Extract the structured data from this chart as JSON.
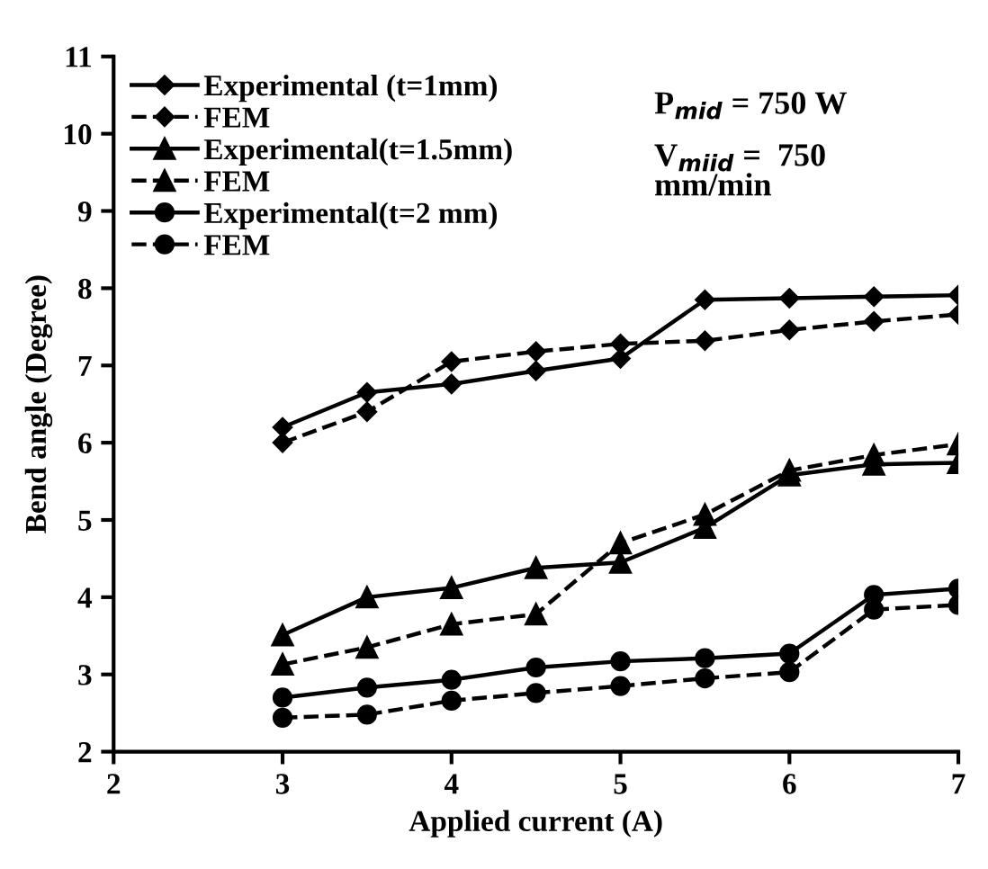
{
  "chart_data": {
    "type": "line",
    "xlabel": "Applied current (A)",
    "ylabel": "Bend angle (Degree)",
    "x": [
      3,
      3.5,
      4,
      4.5,
      5,
      5.5,
      6,
      6.5,
      7
    ],
    "xlim": [
      2,
      7
    ],
    "xticks": [
      2,
      3,
      4,
      5,
      6,
      7
    ],
    "ylim": [
      2,
      11
    ],
    "yticks": [
      2,
      3,
      4,
      5,
      6,
      7,
      8,
      9,
      10,
      11
    ],
    "grid": false,
    "legend": "top left",
    "annotations": [
      "P$_{mid}$ = 750 W",
      "V$_{miid}$ =  750\nmm/min"
    ],
    "series": [
      {
        "name": "Experimental (t=1mm)",
        "color": "#000000",
        "marker": "diamond",
        "line_style": "solid",
        "values": [
          6.2,
          6.65,
          6.76,
          6.93,
          7.09,
          7.85,
          7.87,
          7.89,
          7.91
        ]
      },
      {
        "name": "FEM",
        "color": "#000000",
        "marker": "diamond",
        "line_style": "dashed",
        "values": [
          6.0,
          6.4,
          7.05,
          7.18,
          7.28,
          7.32,
          7.46,
          7.57,
          7.66
        ]
      },
      {
        "name": "Experimental(t=1.5mm)",
        "color": "#000000",
        "marker": "triangle",
        "line_style": "solid",
        "values": [
          3.51,
          4.0,
          4.12,
          4.38,
          4.45,
          4.9,
          5.58,
          5.72,
          5.74
        ]
      },
      {
        "name": "FEM",
        "color": "#000000",
        "marker": "triangle",
        "line_style": "dashed",
        "values": [
          3.13,
          3.35,
          3.65,
          3.78,
          4.7,
          5.07,
          5.64,
          5.84,
          5.98
        ]
      },
      {
        "name": "Experimental(t=2 mm)",
        "color": "#000000",
        "marker": "circle",
        "line_style": "solid",
        "values": [
          2.7,
          2.83,
          2.93,
          3.09,
          3.17,
          3.21,
          3.27,
          4.03,
          4.11
        ]
      },
      {
        "name": "FEM",
        "color": "#000000",
        "marker": "circle",
        "line_style": "dashed",
        "values": [
          2.44,
          2.48,
          2.66,
          2.76,
          2.85,
          2.95,
          3.03,
          3.84,
          3.9
        ]
      }
    ]
  }
}
